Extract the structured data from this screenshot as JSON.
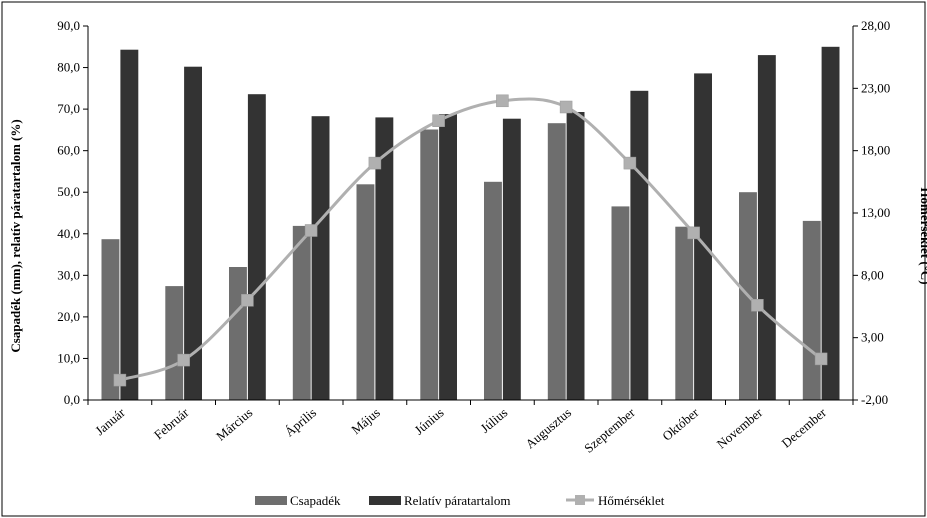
{
  "chart_data": {
    "type": "bar",
    "categories": [
      "Január",
      "Február",
      "Március",
      "Április",
      "Május",
      "Június",
      "Július",
      "Augusztus",
      "Szeptember",
      "Október",
      "November",
      "December"
    ],
    "series": [
      {
        "name": "Csapadék",
        "type": "bar",
        "axis": "left",
        "color": "#6e6e6e",
        "values": [
          38.7,
          27.4,
          32.0,
          41.9,
          51.9,
          65.1,
          52.5,
          66.6,
          46.6,
          41.7,
          50.0,
          43.1
        ]
      },
      {
        "name": "Relatív páratartalom",
        "type": "bar",
        "axis": "left",
        "color": "#333333",
        "values": [
          84.3,
          80.2,
          73.6,
          68.3,
          68.0,
          68.8,
          67.7,
          69.3,
          74.4,
          78.6,
          83.0,
          85.0
        ]
      },
      {
        "name": "Hőmérséklet",
        "type": "line",
        "axis": "right",
        "color": "#b0b0b0",
        "values": [
          -0.4,
          1.2,
          6.0,
          11.6,
          17.0,
          20.4,
          22.0,
          21.5,
          17.0,
          11.4,
          5.6,
          1.3
        ]
      }
    ],
    "ylabel": "Csapadék (mm), relatív páratartalom (%)",
    "y2label": "Hőmérséklet (°C)",
    "ylim": [
      0,
      90
    ],
    "y2lim": [
      -2,
      28
    ],
    "yticks": [
      "0,0",
      "10,0",
      "20,0",
      "30,0",
      "40,0",
      "50,0",
      "60,0",
      "70,0",
      "80,0",
      "90,0"
    ],
    "y2ticks": [
      "-2,00",
      "3,00",
      "8,00",
      "13,00",
      "18,00",
      "23,00",
      "28,00"
    ],
    "grid": false,
    "legend": "bottom"
  }
}
